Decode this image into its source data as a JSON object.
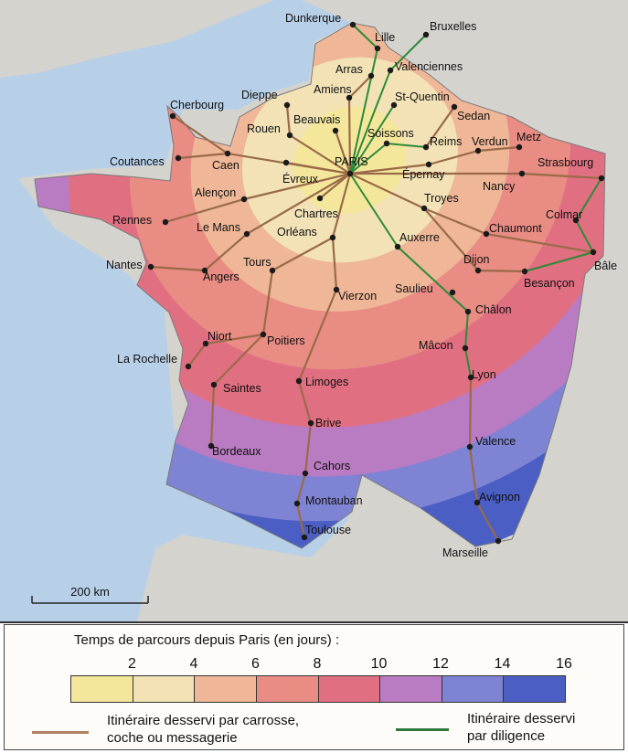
{
  "map": {
    "scale_label": "200 km",
    "colors": {
      "sea": "#b7d0e8",
      "land": "#d5d3ce",
      "carriage_route": "#9a6a48",
      "diligence_route": "#2e8a3a",
      "city_dot": "#1a1a1a"
    },
    "cities": [
      "Dunkerque",
      "Lille",
      "Bruxelles",
      "Valenciennes",
      "Arras",
      "Amiens",
      "Dieppe",
      "St-Quentin",
      "Sedan",
      "Cherbourg",
      "Rouen",
      "Beauvais",
      "Soissons",
      "Reims",
      "Verdun",
      "Metz",
      "PARIS",
      "Caen",
      "Coutances",
      "Évreux",
      "Épernay",
      "Strasbourg",
      "Nancy",
      "Alençon",
      "Chartres",
      "Troyes",
      "Colmar",
      "Rennes",
      "Le Mans",
      "Chaumont",
      "Orléans",
      "Auxerre",
      "Nantes",
      "Angers",
      "Tours",
      "Bâle",
      "Dijon",
      "Besançon",
      "Saulieu",
      "Châlon",
      "Vierzon",
      "Niort",
      "Poitiers",
      "La Rochelle",
      "Mâcon",
      "Saintes",
      "Limoges",
      "Lyon",
      "Brive",
      "Bordeaux",
      "Valence",
      "Cahors",
      "Avignon",
      "Montauban",
      "Toulouse",
      "Marseille"
    ],
    "carriage_routes": [
      [
        "PARIS",
        "Caen",
        "Cherbourg"
      ],
      [
        "Caen",
        "Coutances"
      ],
      [
        "PARIS",
        "Rouen",
        "Dieppe"
      ],
      [
        "PARIS",
        "Évreux"
      ],
      [
        "PARIS",
        "Alençon",
        "Rennes"
      ],
      [
        "PARIS",
        "Le Mans",
        "Angers",
        "Nantes"
      ],
      [
        "PARIS",
        "Chartres"
      ],
      [
        "PARIS",
        "Orléans",
        "Tours",
        "Poitiers",
        "Niort",
        "La Rochelle"
      ],
      [
        "Poitiers",
        "Saintes",
        "Bordeaux"
      ],
      [
        "Orléans",
        "Vierzon",
        "Limoges",
        "Brive",
        "Cahors",
        "Montauban",
        "Toulouse"
      ],
      [
        "PARIS",
        "Beauvais"
      ],
      [
        "PARIS",
        "Amiens"
      ],
      [
        "Amiens",
        "Arras"
      ],
      [
        "PARIS",
        "Épernay",
        "Verdun",
        "Metz"
      ],
      [
        "PARIS",
        "Nancy",
        "Strasbourg"
      ],
      [
        "Reims",
        "Sedan"
      ],
      [
        "PARIS",
        "Troyes",
        "Chaumont",
        "Bâle"
      ],
      [
        "Troyes",
        "Dijon",
        "Besançon",
        "Bâle"
      ],
      [
        "Lyon",
        "Valence",
        "Avignon",
        "Marseille"
      ]
    ],
    "diligence_routes": [
      [
        "PARIS",
        "Lille",
        "Dunkerque"
      ],
      [
        "PARIS",
        "Valenciennes",
        "Bruxelles"
      ],
      [
        "PARIS",
        "St-Quentin"
      ],
      [
        "PARIS",
        "Soissons",
        "Reims"
      ],
      [
        "PARIS",
        "Auxerre",
        "Châlon",
        "Mâcon",
        "Lyon"
      ],
      [
        "Strasbourg",
        "Colmar",
        "Bâle"
      ],
      [
        "Bâle",
        "Besançon"
      ]
    ]
  },
  "legend": {
    "title": "Temps de parcours depuis Paris (en jours) :",
    "ticks": [
      "2",
      "4",
      "6",
      "8",
      "10",
      "12",
      "14",
      "16"
    ],
    "band_colors": [
      "#f4e79c",
      "#f2e2b6",
      "#efb797",
      "#e88c84",
      "#e16f82",
      "#b97bc2",
      "#7f83d3",
      "#4a5ec4"
    ],
    "carriage_label_1": "Itinéraire desservi par carrosse,",
    "carriage_label_2": "coche ou messagerie",
    "diligence_label_1": "Itinéraire desservi",
    "diligence_label_2": "par diligence"
  }
}
